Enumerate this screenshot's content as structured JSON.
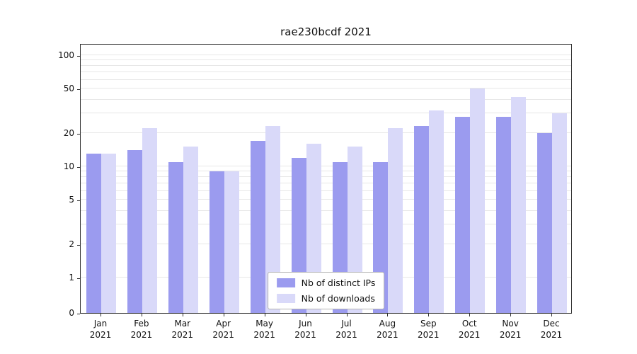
{
  "title": "rae230bcdf 2021",
  "chart_data": {
    "type": "bar",
    "title": "rae230bcdf 2021",
    "yscale": "symlog",
    "grid": true,
    "ylim": [
      0,
      128
    ],
    "y_ticks": [
      0,
      1,
      2,
      5,
      10,
      20,
      50,
      100
    ],
    "grid_values": [
      1,
      2,
      3,
      4,
      5,
      6,
      7,
      8,
      9,
      10,
      20,
      30,
      40,
      50,
      60,
      70,
      80,
      90,
      100
    ],
    "categories": [
      "Jan 2021",
      "Feb 2021",
      "Mar 2021",
      "Apr 2021",
      "May 2021",
      "Jun 2021",
      "Jul 2021",
      "Aug 2021",
      "Sep 2021",
      "Oct 2021",
      "Nov 2021",
      "Dec 2021"
    ],
    "series": [
      {
        "name": "Nb of distinct IPs",
        "color": "#9b9bef",
        "values": [
          13,
          14,
          11,
          9,
          17,
          12,
          11,
          11,
          23,
          28,
          28,
          20
        ]
      },
      {
        "name": "Nb of downloads",
        "color": "#d9d9f9",
        "values": [
          13,
          22,
          15,
          9,
          23,
          16,
          15,
          22,
          32,
          50,
          42,
          30
        ]
      }
    ],
    "legend_position": "lower center"
  }
}
